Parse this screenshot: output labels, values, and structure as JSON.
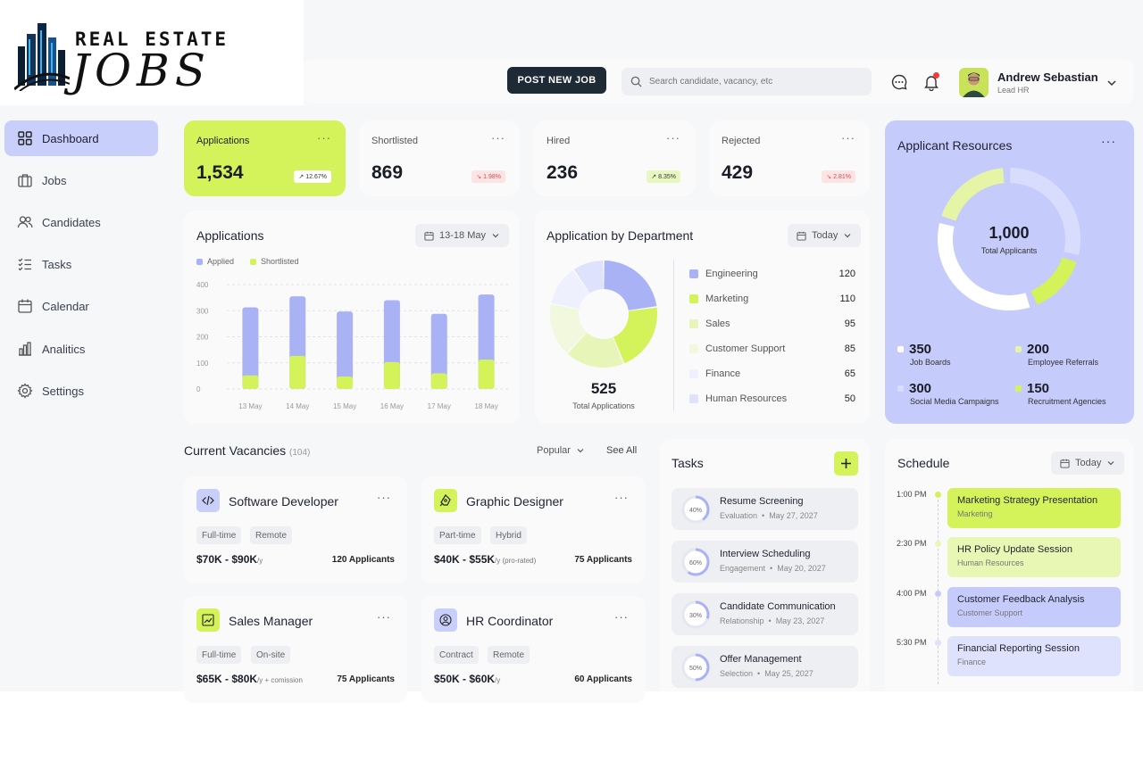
{
  "logo": {
    "line1": "REAL ESTATE",
    "line2": "JOBS"
  },
  "header": {
    "post_button": "POST  NEW JOB",
    "search_placeholder": "Search candidate, vacancy, etc",
    "user_name": "Andrew Sebastian",
    "user_role": "Lead HR"
  },
  "sidebar": {
    "items": [
      {
        "label": "Dashboard",
        "icon": "grid-icon",
        "active": true
      },
      {
        "label": "Jobs",
        "icon": "briefcase-icon"
      },
      {
        "label": "Candidates",
        "icon": "users-icon"
      },
      {
        "label": "Tasks",
        "icon": "checklist-icon"
      },
      {
        "label": "Calendar",
        "icon": "calendar-icon"
      },
      {
        "label": "Analitics",
        "icon": "bar-chart-icon"
      },
      {
        "label": "Settings",
        "icon": "gear-icon"
      }
    ]
  },
  "stats": [
    {
      "label": "Applications",
      "value": "1,534",
      "change": "12.67%",
      "trend": "up"
    },
    {
      "label": "Shortlisted",
      "value": "869",
      "change": "1.98%",
      "trend": "down"
    },
    {
      "label": "Hired",
      "value": "236",
      "change": "8.35%",
      "trend": "up"
    },
    {
      "label": "Rejected",
      "value": "429",
      "change": "2.81%",
      "trend": "down"
    }
  ],
  "applications_chart": {
    "title": "Applications",
    "range": "13-18 May",
    "legend": [
      "Applied",
      "Shortlisted"
    ]
  },
  "chart_data": [
    {
      "type": "bar",
      "title": "Applications",
      "categories": [
        "13 May",
        "14 May",
        "15 May",
        "16 May",
        "17 May",
        "18 May"
      ],
      "series": [
        {
          "name": "Applied",
          "values": [
            313,
            355,
            297,
            340,
            288,
            362
          ]
        },
        {
          "name": "Shortlisted",
          "values": [
            52,
            127,
            48,
            103,
            60,
            113
          ]
        }
      ],
      "yticks": [
        0,
        100,
        200,
        300,
        400
      ],
      "ylim": [
        0,
        400
      ],
      "stacked": "overlay",
      "colors": {
        "Applied": "#aab2f6",
        "Shortlisted": "#d4f35a"
      },
      "grid": true,
      "legend": "top-left"
    },
    {
      "type": "pie",
      "title": "Application by Department",
      "labels": [
        "Engineering",
        "Marketing",
        "Sales",
        "Customer Support",
        "Finance",
        "Human Resources"
      ],
      "values": [
        120,
        110,
        95,
        85,
        65,
        50
      ],
      "colors": [
        "#aab2f6",
        "#d4f35a",
        "#e7f6b8",
        "#f1f8de",
        "#eff0fd",
        "#dfe2fc"
      ],
      "total_label": "525",
      "total_caption": "Total Applications"
    },
    {
      "type": "pie",
      "title": "Applicant Resources",
      "labels": [
        "Job Boards",
        "Employee Referrals",
        "Social Media Campaigns",
        "Recruitment Agencies"
      ],
      "values": [
        350,
        200,
        300,
        150
      ],
      "colors": [
        "#ffffff",
        "#e5f5a5",
        "#d9ddfd",
        "#d4f35a"
      ],
      "total_label": "1,000",
      "total_caption": "Total Applicants"
    }
  ],
  "department": {
    "title": "Application by Department",
    "filter": "Today",
    "total": "525",
    "total_caption": "Total Applications",
    "rows": [
      {
        "label": "Engineering",
        "value": "120",
        "color": "#aab2f6"
      },
      {
        "label": "Marketing",
        "value": "110",
        "color": "#d4f35a"
      },
      {
        "label": "Sales",
        "value": "95",
        "color": "#e7f6b8"
      },
      {
        "label": "Customer Support",
        "value": "85",
        "color": "#f1f8de"
      },
      {
        "label": "Finance",
        "value": "65",
        "color": "#eff0fd"
      },
      {
        "label": "Human Resources",
        "value": "50",
        "color": "#dfe2fc"
      }
    ]
  },
  "resources": {
    "title": "Applicant Resources",
    "total": "1,000",
    "total_caption": "Total Applicants",
    "items": [
      {
        "value": "350",
        "label": "Job Boards",
        "color": "#ffffff"
      },
      {
        "value": "200",
        "label": "Employee Referrals",
        "color": "#e5f5a5"
      },
      {
        "value": "300",
        "label": "Social Media Campaigns",
        "color": "#d9ddfd"
      },
      {
        "value": "150",
        "label": "Recruitment Agencies",
        "color": "#d4f35a"
      }
    ]
  },
  "vacancies": {
    "title": "Current Vacancies",
    "count": "(104)",
    "sort": "Popular",
    "see_all": "See All",
    "items": [
      {
        "title": "Software Developer",
        "icon": "code-icon",
        "icon_bg": "#c9cffb",
        "tags": [
          "Full-time",
          "Remote"
        ],
        "salary": "$70K - $90K",
        "unit": "/y",
        "applicants": "120 Applicants"
      },
      {
        "title": "Graphic Designer",
        "icon": "pen-tool-icon",
        "icon_bg": "#d4f35a",
        "tags": [
          "Part-time",
          "Hybrid"
        ],
        "salary": "$40K - $55K",
        "unit": "/y (pro-rated)",
        "applicants": "75 Applicants"
      },
      {
        "title": "Sales Manager",
        "icon": "trend-chart-icon",
        "icon_bg": "#d4f35a",
        "tags": [
          "Full-time",
          "On-site"
        ],
        "salary": "$65K - $80K",
        "unit": "/y + comission",
        "applicants": "75 Applicants"
      },
      {
        "title": "HR Coordinator",
        "icon": "user-circle-icon",
        "icon_bg": "#c9cffb",
        "tags": [
          "Contract",
          "Remote"
        ],
        "salary": "$50K - $60K",
        "unit": "/y",
        "applicants": "60 Applicants"
      }
    ]
  },
  "tasks": {
    "title": "Tasks",
    "items": [
      {
        "title": "Resume Screening",
        "category": "Evaluation",
        "date": "May 27, 2027",
        "progress": 40,
        "progress_label": "40%"
      },
      {
        "title": "Interview Scheduling",
        "category": "Engagement",
        "date": "May 20, 2027",
        "progress": 60,
        "progress_label": "60%"
      },
      {
        "title": "Candidate Communication",
        "category": "Relationship",
        "date": "May 23, 2027",
        "progress": 30,
        "progress_label": "30%"
      },
      {
        "title": "Offer Management",
        "category": "Selection",
        "date": "May 25, 2027",
        "progress": 50,
        "progress_label": "50%"
      }
    ]
  },
  "schedule": {
    "title": "Schedule",
    "filter": "Today",
    "events": [
      {
        "time": "1:00 PM",
        "title": "Marketing Strategy Presentation",
        "dept": "Marketing",
        "color": "#d4f35a",
        "dot": "#d4f35a"
      },
      {
        "time": "2:30 PM",
        "title": "HR Policy Update Session",
        "dept": "Human Resources",
        "color": "#e9f7b4",
        "dot": "#e9f7b4"
      },
      {
        "time": "4:00 PM",
        "title": "Customer Feedback Analysis",
        "dept": "Customer Support",
        "color": "#c5cbfa",
        "dot": "#c5cbfa"
      },
      {
        "time": "5:30 PM",
        "title": "Financial Reporting Session",
        "dept": "Finance",
        "color": "#dfe2fd",
        "dot": "#dfe2fd"
      }
    ]
  }
}
